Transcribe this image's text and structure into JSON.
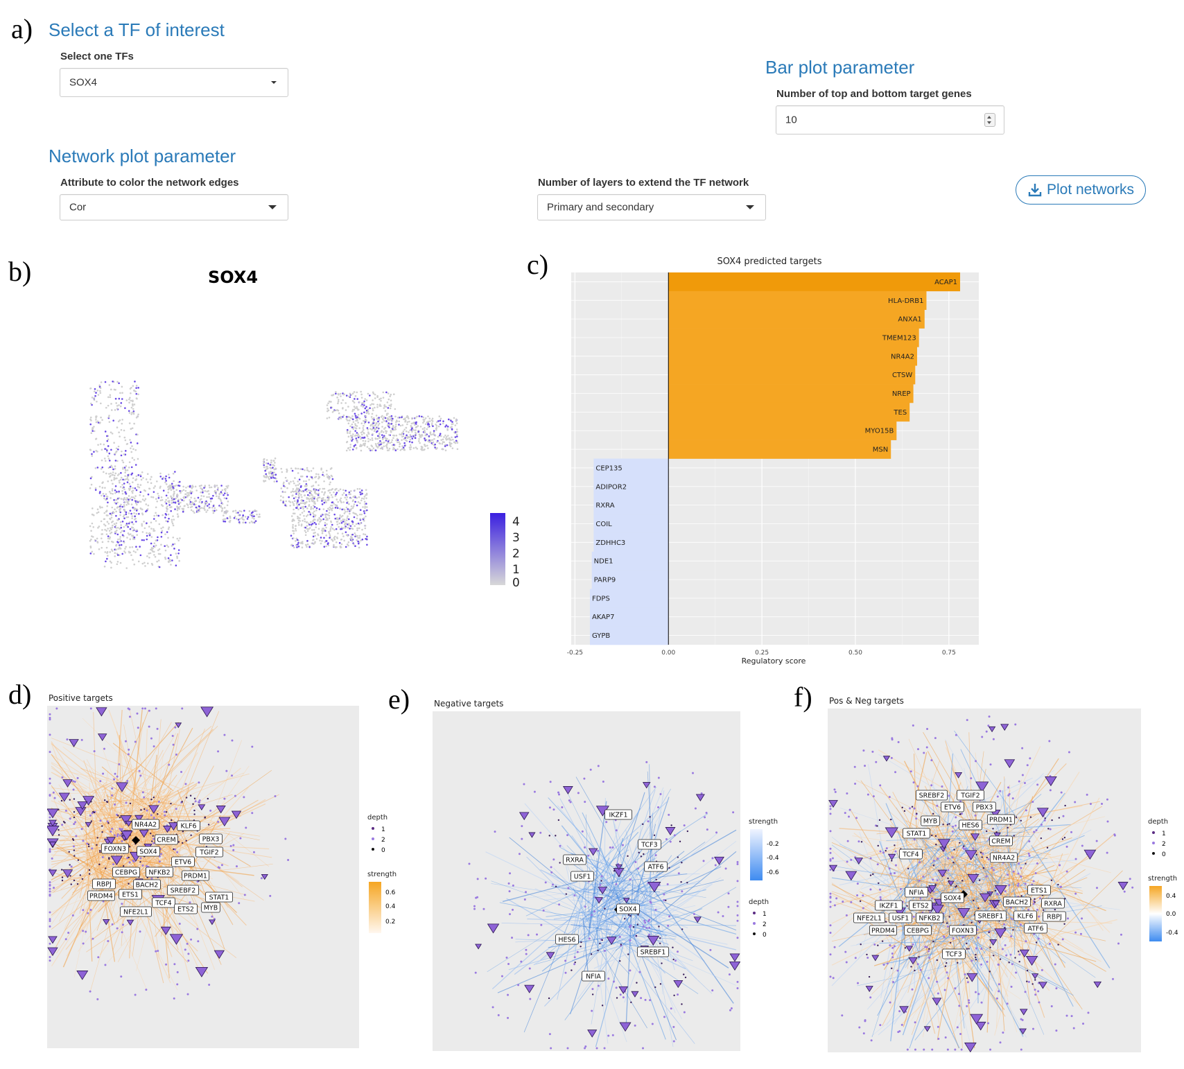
{
  "panel_letters": {
    "a": "a)",
    "b": "b)",
    "c": "c)",
    "d": "d)",
    "e": "e)",
    "f": "f)"
  },
  "tf_section": {
    "title": "Select a TF of interest",
    "select_label": "Select one TFs",
    "selected_tf": "SOX4"
  },
  "bar_section": {
    "title": "Bar plot parameter",
    "count_label": "Number of top and bottom target genes",
    "count_value": "10"
  },
  "network_section": {
    "title": "Network plot parameter",
    "edge_color_label": "Attribute to color the network edges",
    "edge_color_value": "Cor",
    "layers_label": "Number of layers to extend the TF network",
    "layers_value": "Primary and secondary",
    "plot_button": "Plot networks"
  },
  "umap": {
    "title": "SOX4",
    "legend_ticks": [
      "4",
      "3",
      "2",
      "1",
      "0"
    ],
    "colors": {
      "low": "#d3d3d3",
      "high": "#3a1fe0"
    }
  },
  "chart_data": {
    "type": "bar",
    "title": "SOX4 predicted targets",
    "xlabel": "Regulatory score",
    "ylabel": "",
    "xlim": [
      -0.26,
      0.83
    ],
    "x_ticks": [
      "-0.25",
      "0.00",
      "0.25",
      "0.50",
      "0.75"
    ],
    "x_tick_values": [
      -0.25,
      0,
      0.25,
      0.5,
      0.75
    ],
    "orientation": "horizontal",
    "categories": [
      "ACAP1",
      "HLA-DRB1",
      "ANXA1",
      "TMEM123",
      "NR4A2",
      "CTSW",
      "NREP",
      "TES",
      "MYO15B",
      "MSN",
      "CEP135",
      "ADIPOR2",
      "RXRA",
      "COIL",
      "ZDHHC3",
      "NDE1",
      "PARP9",
      "FDPS",
      "AKAP7",
      "GYPB"
    ],
    "values": [
      0.78,
      0.69,
      0.685,
      0.67,
      0.665,
      0.66,
      0.655,
      0.645,
      0.61,
      0.595,
      -0.2,
      -0.2,
      -0.2,
      -0.2,
      -0.2,
      -0.205,
      -0.205,
      -0.21,
      -0.21,
      -0.21
    ],
    "colors": {
      "positive": "#f5a623",
      "top": "#f09a0a",
      "negative": "#d6e0fb"
    }
  },
  "network_d": {
    "title": "Positive targets",
    "labels": [
      "NR4A2",
      "KLF6",
      "CREM",
      "PBX3",
      "FOXN3",
      "SOX4",
      "TGIF2",
      "ETV6",
      "CEBPG",
      "NFKB2",
      "PRDM1",
      "RBPJ",
      "BACH2",
      "SREBF2",
      "PRDM4",
      "ETS1",
      "STAT1",
      "TCF4",
      "NFE2L1",
      "ETS2",
      "MYB"
    ],
    "legend_depth_title": "depth",
    "legend_depth": [
      "1",
      "2",
      "0"
    ],
    "legend_strength_title": "strength",
    "legend_strength": [
      "0.6",
      "0.4",
      "0.2"
    ],
    "edge_color": "#f5b26b"
  },
  "network_e": {
    "title": "Negative targets",
    "labels": [
      "IKZF1",
      "TCF3",
      "RXRA",
      "ATF6",
      "USF1",
      "SOX4",
      "HES6",
      "SREBF1",
      "NFIA"
    ],
    "legend_strength_title": "strength",
    "legend_strength": [
      "-0.2",
      "-0.4",
      "-0.6"
    ],
    "legend_depth_title": "depth",
    "legend_depth": [
      "1",
      "2",
      "0"
    ],
    "edge_color": "#5b9be8"
  },
  "network_f": {
    "title": "Pos & Neg targets",
    "labels": [
      "SREBF2",
      "TGIF2",
      "ETV6",
      "PBX3",
      "MYB",
      "PRDM1",
      "HES6",
      "STAT1",
      "CREM",
      "TCF4",
      "NR4A2",
      "NFIA",
      "SOX4",
      "ETS1",
      "IKZF1",
      "ETS2",
      "BACH2",
      "RXRA",
      "NFE2L1",
      "USF1",
      "NFKB2",
      "SREBF1",
      "KLF6",
      "RBPJ",
      "PRDM4",
      "CEBPG",
      "FOXN3",
      "ATF6",
      "TCF3"
    ],
    "legend_depth_title": "depth",
    "legend_depth": [
      "1",
      "2",
      "0"
    ],
    "legend_strength_title": "strength",
    "legend_strength": [
      "0.4",
      "0.0",
      "-0.4"
    ]
  }
}
